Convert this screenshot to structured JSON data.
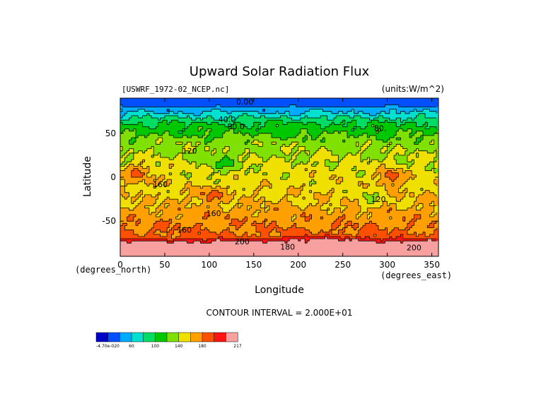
{
  "chart_data": {
    "type": "heatmap",
    "title": "Upward Solar Radiation Flux",
    "subtitle_left": "[USWRF_1972-02_NCEP.nc]",
    "subtitle_right": "(units:W/m^2)",
    "xlabel": "Longitude",
    "ylabel": "Latitude",
    "x_units": "(degrees_east)",
    "y_units": "(degrees_north)",
    "xlim": [
      0,
      357.5
    ],
    "ylim": [
      -90,
      90
    ],
    "x_ticks": [
      "0",
      "50",
      "100",
      "150",
      "200",
      "250",
      "300",
      "350"
    ],
    "x_tick_values": [
      0,
      50,
      100,
      150,
      200,
      250,
      300,
      350
    ],
    "y_ticks": [
      "50",
      "0",
      "-50"
    ],
    "y_tick_values": [
      50,
      0,
      -50
    ],
    "contour_interval_text": "CONTOUR INTERVAL = 2.000E+01",
    "contour_labels": [
      {
        "text": "0.00",
        "x": 140,
        "y": 86
      },
      {
        "text": "40.0",
        "x": 120,
        "y": 66
      },
      {
        "text": "80.0",
        "x": 130,
        "y": 58
      },
      {
        "text": "80.",
        "x": 292,
        "y": 56
      },
      {
        "text": "120",
        "x": 78,
        "y": 30
      },
      {
        "text": "160",
        "x": 45,
        "y": -8
      },
      {
        "text": "120",
        "x": 290,
        "y": -25
      },
      {
        "text": "160",
        "x": 105,
        "y": -41
      },
      {
        "text": "160",
        "x": 72,
        "y": -60
      },
      {
        "text": "200",
        "x": 137,
        "y": -73
      },
      {
        "text": "180",
        "x": 188,
        "y": -79
      },
      {
        "text": "200",
        "x": 330,
        "y": -80
      }
    ],
    "colorbar": {
      "levels": [
        0,
        20,
        40,
        60,
        80,
        100,
        120,
        140,
        160,
        180,
        200
      ],
      "colors": [
        "#0000c8",
        "#0050ff",
        "#00aaff",
        "#00e0d0",
        "#00dc64",
        "#00c800",
        "#80e000",
        "#f0e000",
        "#ffa000",
        "#ff5000",
        "#ff1414",
        "#f8a0a0"
      ],
      "labels": [
        "-4.70e-020",
        "60",
        "100",
        "140",
        "180",
        "217"
      ],
      "min": -4.7e-20,
      "max": 217
    }
  }
}
